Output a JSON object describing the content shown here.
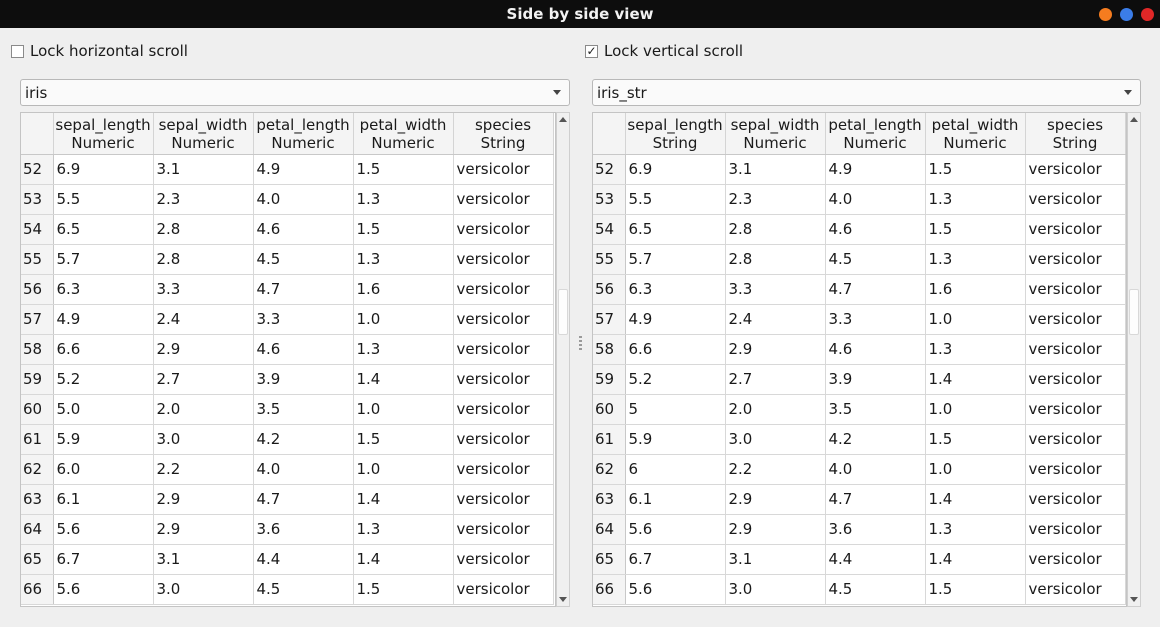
{
  "window": {
    "title": "Side by side view",
    "buttons": [
      {
        "name": "minimize",
        "color": "#f57c1f"
      },
      {
        "name": "maximize",
        "color": "#3b7de8"
      },
      {
        "name": "close",
        "color": "#e02727"
      }
    ]
  },
  "left": {
    "lock_label": "Lock horizontal scroll",
    "lock_checked": false,
    "dataset": "iris",
    "columns": [
      {
        "name": "sepal_length",
        "type": "Numeric"
      },
      {
        "name": "sepal_width",
        "type": "Numeric"
      },
      {
        "name": "petal_length",
        "type": "Numeric"
      },
      {
        "name": "petal_width",
        "type": "Numeric"
      },
      {
        "name": "species",
        "type": "String"
      }
    ],
    "rows": [
      [
        "52",
        "6.9",
        "3.1",
        "4.9",
        "1.5",
        "versicolor"
      ],
      [
        "53",
        "5.5",
        "2.3",
        "4.0",
        "1.3",
        "versicolor"
      ],
      [
        "54",
        "6.5",
        "2.8",
        "4.6",
        "1.5",
        "versicolor"
      ],
      [
        "55",
        "5.7",
        "2.8",
        "4.5",
        "1.3",
        "versicolor"
      ],
      [
        "56",
        "6.3",
        "3.3",
        "4.7",
        "1.6",
        "versicolor"
      ],
      [
        "57",
        "4.9",
        "2.4",
        "3.3",
        "1.0",
        "versicolor"
      ],
      [
        "58",
        "6.6",
        "2.9",
        "4.6",
        "1.3",
        "versicolor"
      ],
      [
        "59",
        "5.2",
        "2.7",
        "3.9",
        "1.4",
        "versicolor"
      ],
      [
        "60",
        "5.0",
        "2.0",
        "3.5",
        "1.0",
        "versicolor"
      ],
      [
        "61",
        "5.9",
        "3.0",
        "4.2",
        "1.5",
        "versicolor"
      ],
      [
        "62",
        "6.0",
        "2.2",
        "4.0",
        "1.0",
        "versicolor"
      ],
      [
        "63",
        "6.1",
        "2.9",
        "4.7",
        "1.4",
        "versicolor"
      ],
      [
        "64",
        "5.6",
        "2.9",
        "3.6",
        "1.3",
        "versicolor"
      ],
      [
        "65",
        "6.7",
        "3.1",
        "4.4",
        "1.4",
        "versicolor"
      ],
      [
        "66",
        "5.6",
        "3.0",
        "4.5",
        "1.5",
        "versicolor"
      ]
    ]
  },
  "right": {
    "lock_label": "Lock vertical scroll",
    "lock_checked": true,
    "dataset": "iris_str",
    "columns": [
      {
        "name": "sepal_length",
        "type": "String"
      },
      {
        "name": "sepal_width",
        "type": "Numeric"
      },
      {
        "name": "petal_length",
        "type": "Numeric"
      },
      {
        "name": "petal_width",
        "type": "Numeric"
      },
      {
        "name": "species",
        "type": "String"
      }
    ],
    "rows": [
      [
        "52",
        "6.9",
        "3.1",
        "4.9",
        "1.5",
        "versicolor"
      ],
      [
        "53",
        "5.5",
        "2.3",
        "4.0",
        "1.3",
        "versicolor"
      ],
      [
        "54",
        "6.5",
        "2.8",
        "4.6",
        "1.5",
        "versicolor"
      ],
      [
        "55",
        "5.7",
        "2.8",
        "4.5",
        "1.3",
        "versicolor"
      ],
      [
        "56",
        "6.3",
        "3.3",
        "4.7",
        "1.6",
        "versicolor"
      ],
      [
        "57",
        "4.9",
        "2.4",
        "3.3",
        "1.0",
        "versicolor"
      ],
      [
        "58",
        "6.6",
        "2.9",
        "4.6",
        "1.3",
        "versicolor"
      ],
      [
        "59",
        "5.2",
        "2.7",
        "3.9",
        "1.4",
        "versicolor"
      ],
      [
        "60",
        "5",
        "2.0",
        "3.5",
        "1.0",
        "versicolor"
      ],
      [
        "61",
        "5.9",
        "3.0",
        "4.2",
        "1.5",
        "versicolor"
      ],
      [
        "62",
        "6",
        "2.2",
        "4.0",
        "1.0",
        "versicolor"
      ],
      [
        "63",
        "6.1",
        "2.9",
        "4.7",
        "1.4",
        "versicolor"
      ],
      [
        "64",
        "5.6",
        "2.9",
        "3.6",
        "1.3",
        "versicolor"
      ],
      [
        "65",
        "6.7",
        "3.1",
        "4.4",
        "1.4",
        "versicolor"
      ],
      [
        "66",
        "5.6",
        "3.0",
        "4.5",
        "1.5",
        "versicolor"
      ]
    ]
  }
}
